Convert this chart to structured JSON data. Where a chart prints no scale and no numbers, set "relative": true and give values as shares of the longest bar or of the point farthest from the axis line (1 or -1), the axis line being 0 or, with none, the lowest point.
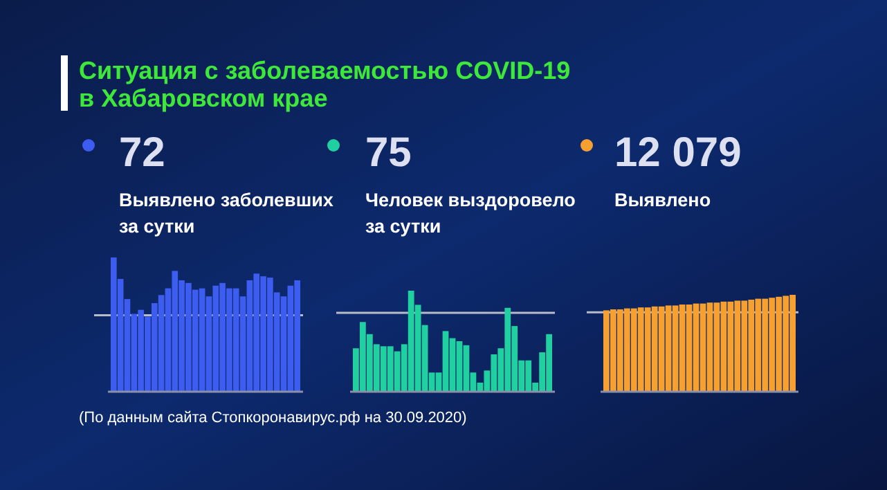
{
  "chart_data": [
    {
      "type": "bar",
      "title": "Выявлено заболевших за сутки",
      "subtitle": "72",
      "relative": true,
      "categories": [
        null,
        null,
        null,
        null,
        null,
        null,
        null,
        null,
        null,
        null,
        null,
        null,
        null,
        null,
        null,
        null,
        null,
        null,
        null,
        null,
        null,
        null,
        null,
        null,
        null,
        null,
        null,
        null
      ],
      "values": [
        1,
        0.84,
        0.69,
        0.58,
        0.61,
        0.56,
        0.66,
        0.72,
        0.77,
        0.9,
        0.83,
        0.81,
        0.76,
        0.77,
        0.71,
        0.79,
        0.81,
        0.77,
        0.77,
        0.71,
        0.83,
        0.88,
        0.86,
        0.85,
        0.74,
        0.71,
        0.79,
        0.83
      ],
      "color": "#3d5cf0",
      "ref_lines": [
        {
          "axis": "y",
          "value": 0.57,
          "color": "#b8bcc8"
        }
      ],
      "annotations": [
        "Ситуация с заболеваемостью COVID-19 в Хабаровском крае",
        "(По данным сайта Стопкоронавирус.рф на 30.09.2020)"
      ]
    },
    {
      "type": "bar",
      "title": "Человек выздоровело за сутки",
      "subtitle": "75",
      "relative": true,
      "categories": [
        null,
        null,
        null,
        null,
        null,
        null,
        null,
        null,
        null,
        null,
        null,
        null,
        null,
        null,
        null,
        null,
        null,
        null,
        null,
        null,
        null,
        null,
        null,
        null,
        null,
        null,
        null,
        null,
        null
      ],
      "values": [
        0.43,
        0.69,
        0.57,
        0.47,
        0.45,
        0.45,
        0.4,
        0.47,
        1,
        0.86,
        0.66,
        0.19,
        0.19,
        0.6,
        0.53,
        0.5,
        0.46,
        0.19,
        0.09,
        0.21,
        0.37,
        0.43,
        0.83,
        0.65,
        0.31,
        0.31,
        0.09,
        0.39,
        0.57
      ],
      "color": "#20d0a0",
      "ref_lines": [
        {
          "axis": "y",
          "value": 0.78,
          "color": "#b8bcc8"
        }
      ]
    },
    {
      "type": "bar",
      "title": "Выявлено",
      "subtitle": "12 079",
      "relative": true,
      "categories": [
        null,
        null,
        null,
        null,
        null,
        null,
        null,
        null,
        null,
        null,
        null,
        null,
        null,
        null,
        null,
        null,
        null,
        null,
        null,
        null,
        null,
        null,
        null,
        null,
        null,
        null,
        null,
        null
      ],
      "values": [
        0.84,
        0.85,
        0.85,
        0.86,
        0.86,
        0.87,
        0.87,
        0.88,
        0.88,
        0.89,
        0.89,
        0.9,
        0.9,
        0.91,
        0.91,
        0.92,
        0.92,
        0.93,
        0.93,
        0.94,
        0.94,
        0.95,
        0.96,
        0.96,
        0.97,
        0.98,
        0.99,
        1
      ],
      "color": "#f5a030",
      "ref_lines": [
        {
          "axis": "y",
          "value": 0.82,
          "color": "#b8bcc8"
        }
      ]
    }
  ]
}
